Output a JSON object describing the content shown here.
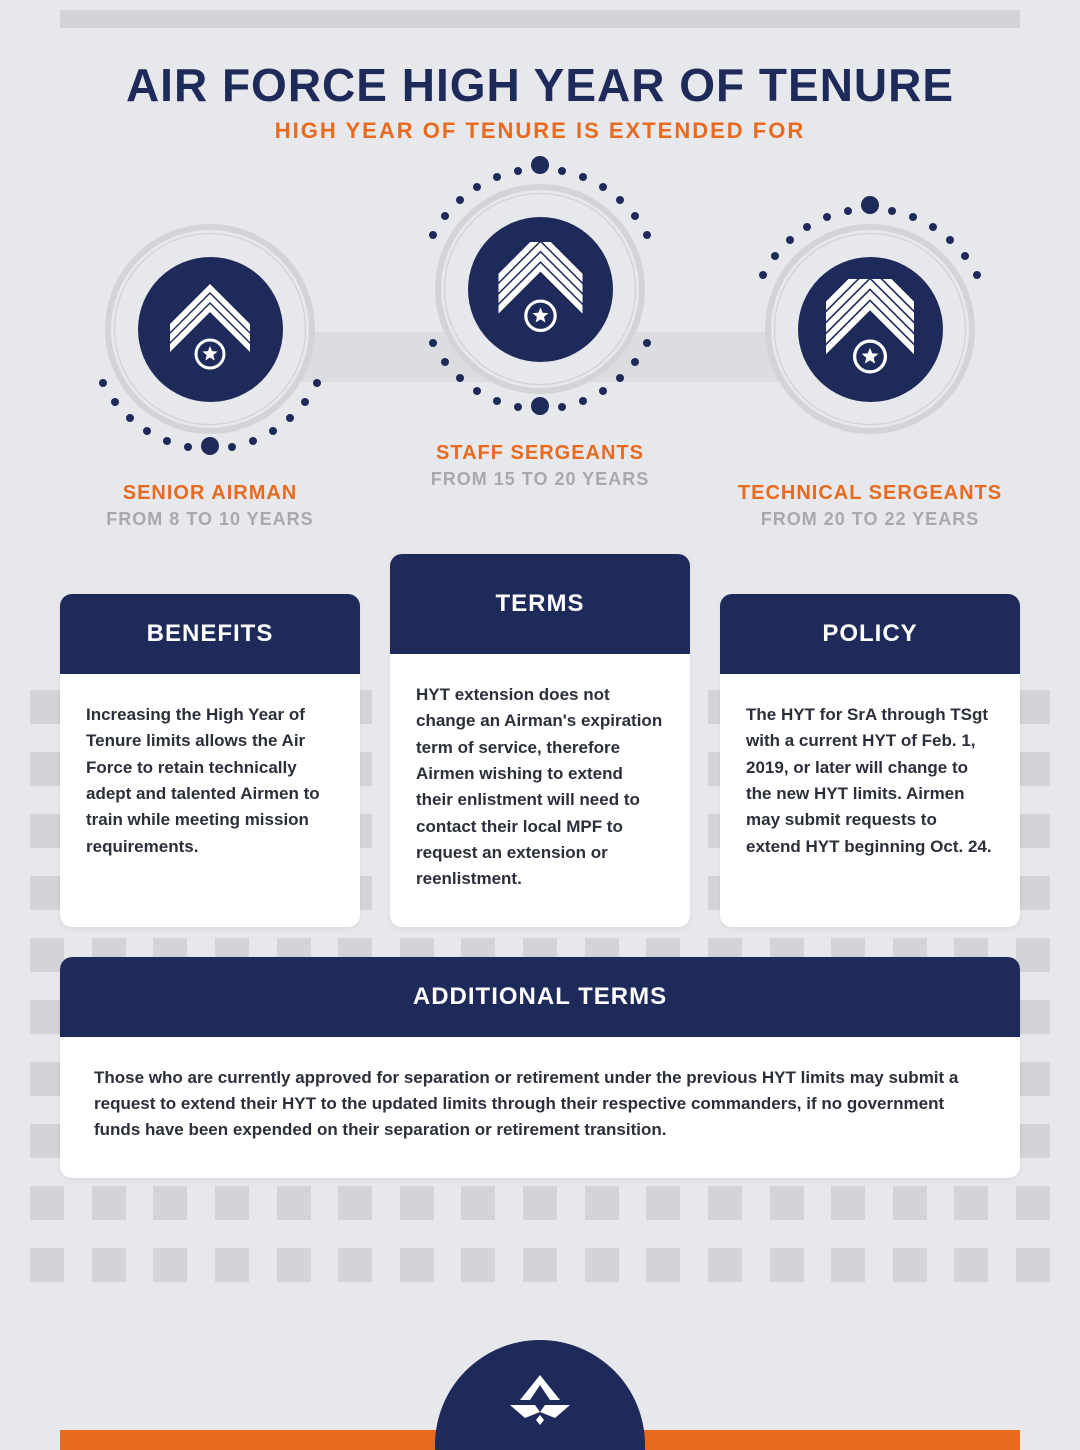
{
  "colors": {
    "navy": "#1e2a5a",
    "orange": "#e86a1f",
    "bg": "#e7e8ec",
    "square": "#d3d4d8",
    "grey_text": "#a8a9b0",
    "body_text": "#2b2f3a",
    "white": "#ffffff"
  },
  "title": "AIR FORCE HIGH YEAR OF TENURE",
  "subtitle": "HIGH YEAR OF TENURE IS EXTENDED FOR",
  "ranks": [
    {
      "name": "SENIOR AIRMAN",
      "years": "FROM 8 TO 10 YEARS",
      "stripes": 3
    },
    {
      "name": "STAFF SERGEANTS",
      "years": "FROM 15 TO 20 YEARS",
      "stripes": 4
    },
    {
      "name": "TECHNICAL SERGEANTS",
      "years": "FROM 20 TO 22 YEARS",
      "stripes": 5
    }
  ],
  "cards": [
    {
      "title": "BENEFITS",
      "body": "Increasing the High Year of Tenure limits allows the Air Force to retain technically adept and talented Airmen to train while meeting mission requirements."
    },
    {
      "title": "TERMS",
      "body": "HYT extension does not change an Airman's expiration term of service, therefore Airmen wishing to extend their enlistment will need to contact their local MPF to request an extension or reenlistment."
    },
    {
      "title": "POLICY",
      "body": "The HYT for SrA through TSgt with a current HYT of Feb. 1, 2019, or later will change to the new HYT limits. Airmen may submit requests to extend HYT beginning Oct. 24."
    }
  ],
  "additional": {
    "title": "ADDITIONAL TERMS",
    "body": "Those who are currently approved for separation or retirement under the previous HYT limits may submit a request to extend their HYT to the updated limits through their respective commanders, if no government funds have been expended on their separation or retirement transition."
  }
}
